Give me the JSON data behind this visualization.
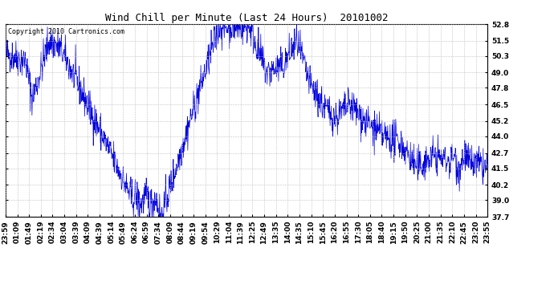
{
  "title": "Wind Chill per Minute (Last 24 Hours)  20101002",
  "copyright": "Copyright 2010 Cartronics.com",
  "yticks": [
    52.8,
    51.5,
    50.3,
    49.0,
    47.8,
    46.5,
    45.2,
    44.0,
    42.7,
    41.5,
    40.2,
    39.0,
    37.7
  ],
  "ylim": [
    37.7,
    52.8
  ],
  "line_color": "#0000dd",
  "bg_color": "#ffffff",
  "plot_bg_color": "#ffffff",
  "title_fontsize": 9,
  "copyright_fontsize": 6,
  "tick_fontsize": 6.5,
  "xtick_labels": [
    "23:59",
    "01:09",
    "01:49",
    "02:19",
    "02:34",
    "03:04",
    "03:39",
    "04:09",
    "04:39",
    "05:14",
    "05:49",
    "06:24",
    "06:59",
    "07:34",
    "08:09",
    "08:44",
    "09:19",
    "09:54",
    "10:29",
    "11:04",
    "11:39",
    "12:25",
    "12:49",
    "13:35",
    "14:00",
    "14:35",
    "15:10",
    "15:45",
    "16:20",
    "16:55",
    "17:30",
    "18:05",
    "18:40",
    "19:15",
    "19:50",
    "20:25",
    "21:00",
    "21:35",
    "22:10",
    "22:45",
    "23:20",
    "23:55"
  ]
}
